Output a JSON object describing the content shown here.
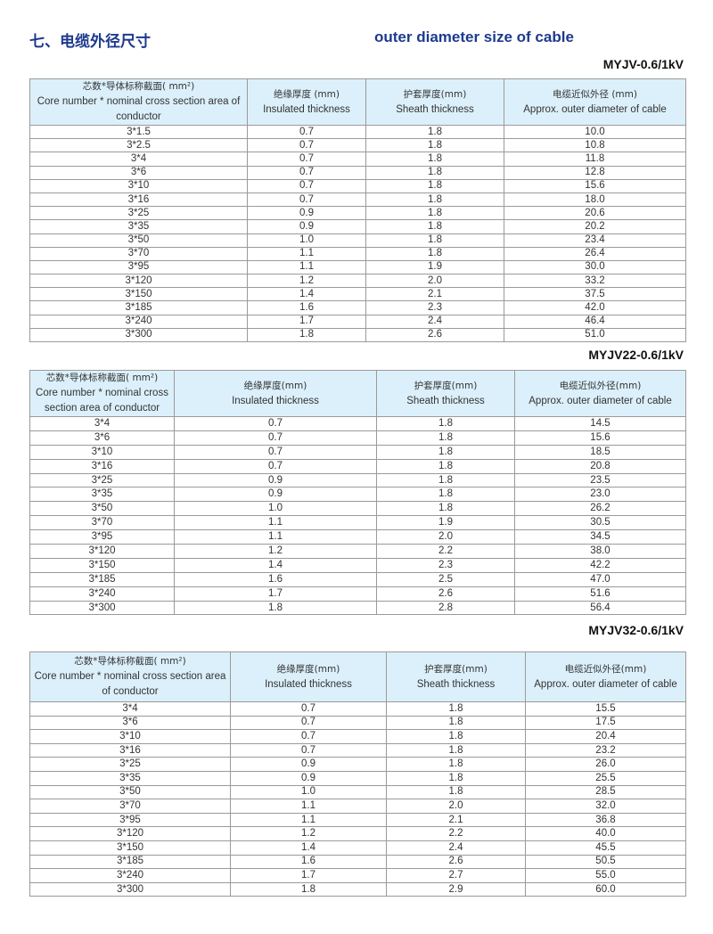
{
  "heading": {
    "cn": "七、电缆外径尺寸",
    "en": "outer diameter size of cable"
  },
  "tables": [
    {
      "model": "MYJV-0.6/1kV",
      "headers": [
        {
          "cn": "芯数*导体标称截面( mm²)",
          "en": "Core number * nominal cross section area of conductor"
        },
        {
          "cn": "绝缘厚度 (mm)",
          "en": "Insulated thickness"
        },
        {
          "cn": "护套厚度(mm)",
          "en": "Sheath thickness"
        },
        {
          "cn": "电缆近似外径 (mm)",
          "en": "Approx. outer diameter of cable"
        }
      ],
      "rows": [
        [
          "3*1.5",
          "0.7",
          "1.8",
          "10.0"
        ],
        [
          "3*2.5",
          "0.7",
          "1.8",
          "10.8"
        ],
        [
          "3*4",
          "0.7",
          "1.8",
          "11.8"
        ],
        [
          "3*6",
          "0.7",
          "1.8",
          "12.8"
        ],
        [
          "3*10",
          "0.7",
          "1.8",
          "15.6"
        ],
        [
          "3*16",
          "0.7",
          "1.8",
          "18.0"
        ],
        [
          "3*25",
          "0.9",
          "1.8",
          "20.6"
        ],
        [
          "3*35",
          "0.9",
          "1.8",
          "20.2"
        ],
        [
          "3*50",
          "1.0",
          "1.8",
          "23.4"
        ],
        [
          "3*70",
          "1.1",
          "1.8",
          "26.4"
        ],
        [
          "3*95",
          "1.1",
          "1.9",
          "30.0"
        ],
        [
          "3*120",
          "1.2",
          "2.0",
          "33.2"
        ],
        [
          "3*150",
          "1.4",
          "2.1",
          "37.5"
        ],
        [
          "3*185",
          "1.6",
          "2.3",
          "42.0"
        ],
        [
          "3*240",
          "1.7",
          "2.4",
          "46.4"
        ],
        [
          "3*300",
          "1.8",
          "2.6",
          "51.0"
        ]
      ]
    },
    {
      "model": "MYJV22-0.6/1kV",
      "headers": [
        {
          "cn": "芯数*导体标称截面( mm²)",
          "en": "Core number * nominal cross section area of conductor"
        },
        {
          "cn": "绝缘厚度(mm)",
          "en": "Insulated thickness"
        },
        {
          "cn": "护套厚度(mm)",
          "en": "Sheath thickness"
        },
        {
          "cn": "电缆近似外径(mm)",
          "en": "Approx. outer diameter of cable"
        }
      ],
      "rows": [
        [
          "3*4",
          "0.7",
          "1.8",
          "14.5"
        ],
        [
          "3*6",
          "0.7",
          "1.8",
          "15.6"
        ],
        [
          "3*10",
          "0.7",
          "1.8",
          "18.5"
        ],
        [
          "3*16",
          "0.7",
          "1.8",
          "20.8"
        ],
        [
          "3*25",
          "0.9",
          "1.8",
          "23.5"
        ],
        [
          "3*35",
          "0.9",
          "1.8",
          "23.0"
        ],
        [
          "3*50",
          "1.0",
          "1.8",
          "26.2"
        ],
        [
          "3*70",
          "1.1",
          "1.9",
          "30.5"
        ],
        [
          "3*95",
          "1.1",
          "2.0",
          "34.5"
        ],
        [
          "3*120",
          "1.2",
          "2.2",
          "38.0"
        ],
        [
          "3*150",
          "1.4",
          "2.3",
          "42.2"
        ],
        [
          "3*185",
          "1.6",
          "2.5",
          "47.0"
        ],
        [
          "3*240",
          "1.7",
          "2.6",
          "51.6"
        ],
        [
          "3*300",
          "1.8",
          "2.8",
          "56.4"
        ]
      ]
    },
    {
      "model": "MYJV32-0.6/1kV",
      "headers": [
        {
          "cn": "芯数*导体标称截面( mm²)",
          "en": "Core number * nominal cross section area of conductor"
        },
        {
          "cn": "绝缘厚度(mm)",
          "en": "Insulated thickness"
        },
        {
          "cn": "护套厚度(mm)",
          "en": "Sheath thickness"
        },
        {
          "cn": "电缆近似外径(mm)",
          "en": "Approx. outer diameter of cable"
        }
      ],
      "rows": [
        [
          "3*4",
          "0.7",
          "1.8",
          "15.5"
        ],
        [
          "3*6",
          "0.7",
          "1.8",
          "17.5"
        ],
        [
          "3*10",
          "0.7",
          "1.8",
          "20.4"
        ],
        [
          "3*16",
          "0.7",
          "1.8",
          "23.2"
        ],
        [
          "3*25",
          "0.9",
          "1.8",
          "26.0"
        ],
        [
          "3*35",
          "0.9",
          "1.8",
          "25.5"
        ],
        [
          "3*50",
          "1.0",
          "1.8",
          "28.5"
        ],
        [
          "3*70",
          "1.1",
          "2.0",
          "32.0"
        ],
        [
          "3*95",
          "1.1",
          "2.1",
          "36.8"
        ],
        [
          "3*120",
          "1.2",
          "2.2",
          "40.0"
        ],
        [
          "3*150",
          "1.4",
          "2.4",
          "45.5"
        ],
        [
          "3*185",
          "1.6",
          "2.6",
          "50.5"
        ],
        [
          "3*240",
          "1.7",
          "2.7",
          "55.0"
        ],
        [
          "3*300",
          "1.8",
          "2.9",
          "60.0"
        ]
      ]
    }
  ]
}
